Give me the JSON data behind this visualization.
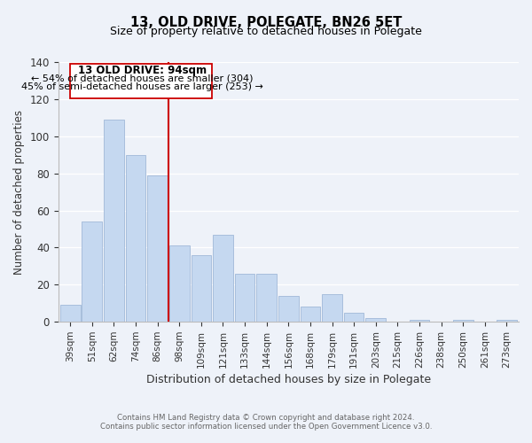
{
  "title": "13, OLD DRIVE, POLEGATE, BN26 5ET",
  "subtitle": "Size of property relative to detached houses in Polegate",
  "xlabel": "Distribution of detached houses by size in Polegate",
  "ylabel": "Number of detached properties",
  "categories": [
    "39sqm",
    "51sqm",
    "62sqm",
    "74sqm",
    "86sqm",
    "98sqm",
    "109sqm",
    "121sqm",
    "133sqm",
    "144sqm",
    "156sqm",
    "168sqm",
    "179sqm",
    "191sqm",
    "203sqm",
    "215sqm",
    "226sqm",
    "238sqm",
    "250sqm",
    "261sqm",
    "273sqm"
  ],
  "values": [
    9,
    54,
    109,
    90,
    79,
    41,
    36,
    47,
    26,
    26,
    14,
    8,
    15,
    5,
    2,
    0,
    1,
    0,
    1,
    0,
    1
  ],
  "bar_color": "#c5d8f0",
  "bar_edge_color": "#a0b8d8",
  "vline_color": "#cc0000",
  "ylim": [
    0,
    140
  ],
  "annotation_title": "13 OLD DRIVE: 94sqm",
  "annotation_line1": "← 54% of detached houses are smaller (304)",
  "annotation_line2": "45% of semi-detached houses are larger (253) →",
  "footer1": "Contains HM Land Registry data © Crown copyright and database right 2024.",
  "footer2": "Contains public sector information licensed under the Open Government Licence v3.0.",
  "background_color": "#eef2f9"
}
